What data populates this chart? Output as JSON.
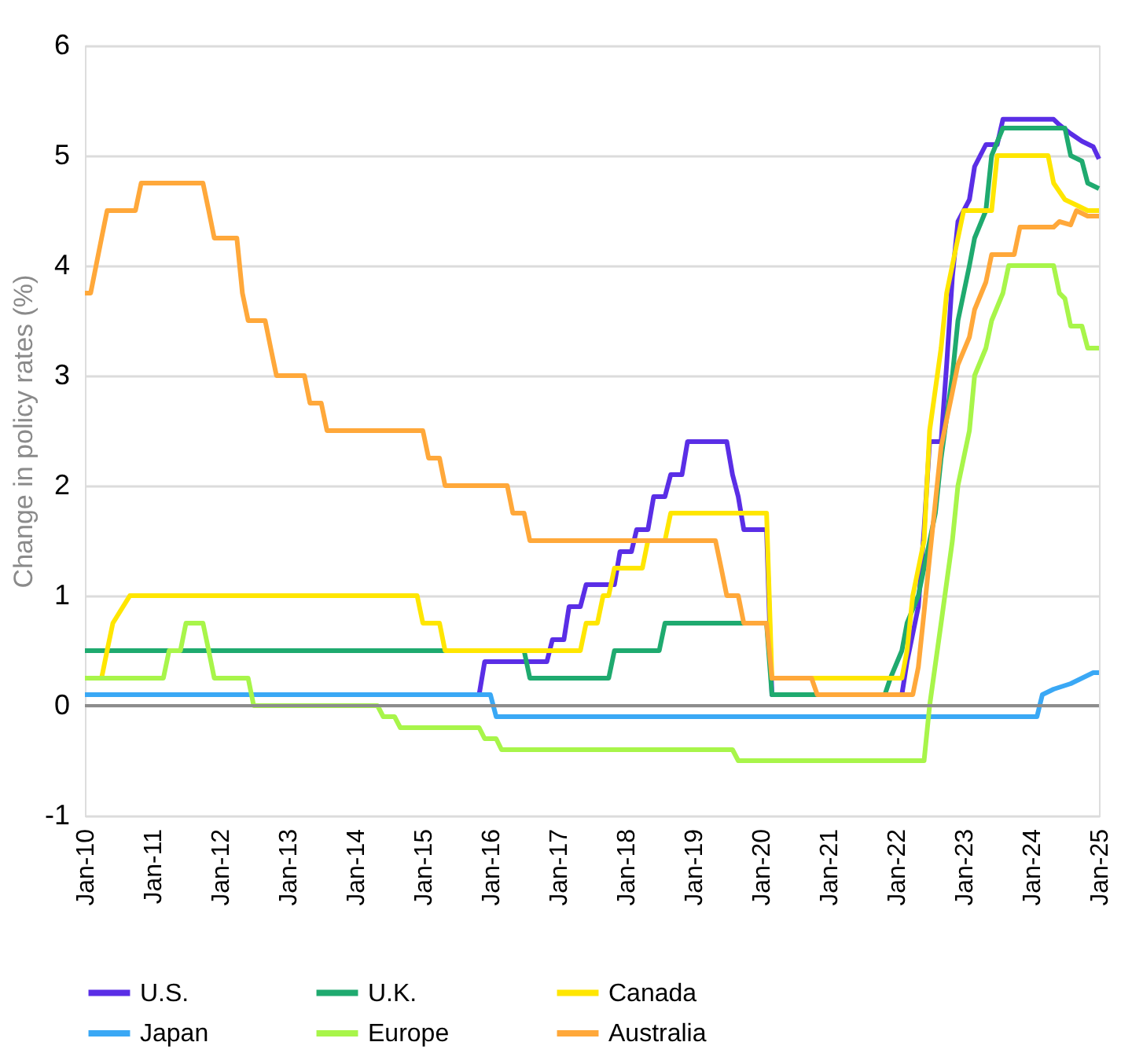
{
  "chart_data": {
    "type": "line",
    "ylabel": "Change in policy rates (%)",
    "xlim": [
      "2010-01",
      "2025-01"
    ],
    "xticks": [
      {
        "value": "2010-01",
        "label": "Jan-10"
      },
      {
        "value": "2011-01",
        "label": "Jan-11"
      },
      {
        "value": "2012-01",
        "label": "Jan-12"
      },
      {
        "value": "2013-01",
        "label": "Jan-13"
      },
      {
        "value": "2014-01",
        "label": "Jan-14"
      },
      {
        "value": "2015-01",
        "label": "Jan-15"
      },
      {
        "value": "2016-01",
        "label": "Jan-16"
      },
      {
        "value": "2017-01",
        "label": "Jan-17"
      },
      {
        "value": "2018-01",
        "label": "Jan-18"
      },
      {
        "value": "2019-01",
        "label": "Jan-19"
      },
      {
        "value": "2020-01",
        "label": "Jan-20"
      },
      {
        "value": "2021-01",
        "label": "Jan-21"
      },
      {
        "value": "2022-01",
        "label": "Jan-22"
      },
      {
        "value": "2023-01",
        "label": "Jan-23"
      },
      {
        "value": "2024-01",
        "label": "Jan-24"
      },
      {
        "value": "2025-01",
        "label": "Jan-25"
      }
    ],
    "ylim": [
      -1,
      6
    ],
    "yticks": [
      -1,
      0,
      1,
      2,
      3,
      4,
      5,
      6
    ],
    "grid": "y",
    "legend": "bottom",
    "line_style": "solid",
    "marker": "none",
    "ref_lines": [
      {
        "axis": "y",
        "value": 0,
        "color": "#8c8c8c"
      }
    ],
    "series": [
      {
        "name": "U.S.",
        "color": "#5a2ee6",
        "x": [
          "2015-11",
          "2015-12",
          "2016-11",
          "2016-12",
          "2017-02",
          "2017-03",
          "2017-05",
          "2017-06",
          "2017-11",
          "2017-12",
          "2018-02",
          "2018-03",
          "2018-05",
          "2018-06",
          "2018-08",
          "2018-09",
          "2018-11",
          "2018-12",
          "2019-07",
          "2019-08",
          "2019-09",
          "2019-10",
          "2020-02",
          "2020-03",
          "2022-02",
          "2022-03",
          "2022-05",
          "2022-06",
          "2022-07",
          "2022-09",
          "2022-10",
          "2022-11",
          "2022-12",
          "2023-02",
          "2023-03",
          "2023-05",
          "2023-07",
          "2023-08",
          "2024-05",
          "2024-06",
          "2024-08",
          "2024-10",
          "2024-12",
          "2025-01"
        ],
        "values": [
          0.1,
          0.4,
          0.4,
          0.6,
          0.6,
          0.9,
          0.9,
          1.1,
          1.1,
          1.4,
          1.4,
          1.6,
          1.6,
          1.9,
          1.9,
          2.1,
          2.1,
          2.4,
          2.4,
          2.1,
          1.9,
          1.6,
          1.6,
          0.1,
          0.1,
          0.4,
          0.9,
          1.6,
          2.4,
          2.4,
          3.1,
          3.9,
          4.4,
          4.6,
          4.9,
          5.1,
          5.1,
          5.33,
          5.33,
          5.28,
          5.2,
          5.13,
          5.08,
          4.97
        ]
      },
      {
        "name": "U.K.",
        "color": "#1faa6f",
        "x": [
          "2010-01",
          "2016-07",
          "2016-08",
          "2017-10",
          "2017-11",
          "2018-07",
          "2018-08",
          "2020-02",
          "2020-03",
          "2021-11",
          "2021-12",
          "2022-02",
          "2022-03",
          "2022-05",
          "2022-06",
          "2022-08",
          "2022-09",
          "2022-11",
          "2022-12",
          "2023-02",
          "2023-03",
          "2023-05",
          "2023-06",
          "2023-08",
          "2024-07",
          "2024-08",
          "2024-10",
          "2024-11",
          "2025-01"
        ],
        "values": [
          0.5,
          0.5,
          0.25,
          0.25,
          0.5,
          0.5,
          0.75,
          0.75,
          0.1,
          0.1,
          0.25,
          0.5,
          0.75,
          1.0,
          1.25,
          1.75,
          2.25,
          3.0,
          3.5,
          4.0,
          4.25,
          4.5,
          5.0,
          5.25,
          5.25,
          5.0,
          4.95,
          4.75,
          4.7
        ]
      },
      {
        "name": "Canada",
        "color": "#ffe600",
        "x": [
          "2010-01",
          "2010-04",
          "2010-05",
          "2010-06",
          "2010-09",
          "2014-12",
          "2015-01",
          "2015-04",
          "2015-05",
          "2017-05",
          "2017-06",
          "2017-08",
          "2017-09",
          "2017-10",
          "2017-11",
          "2018-04",
          "2018-05",
          "2018-08",
          "2018-09",
          "2020-02",
          "2020-03",
          "2022-02",
          "2022-03",
          "2022-04",
          "2022-06",
          "2022-07",
          "2022-09",
          "2022-10",
          "2022-12",
          "2023-01",
          "2023-06",
          "2023-07",
          "2024-04",
          "2024-05",
          "2024-07",
          "2024-09",
          "2024-11",
          "2025-01"
        ],
        "values": [
          0.25,
          0.25,
          0.5,
          0.75,
          1.0,
          1.0,
          0.75,
          0.75,
          0.5,
          0.5,
          0.75,
          0.75,
          1.0,
          1.0,
          1.25,
          1.25,
          1.5,
          1.5,
          1.75,
          1.75,
          0.25,
          0.25,
          0.5,
          1.0,
          1.5,
          2.5,
          3.25,
          3.75,
          4.25,
          4.5,
          4.5,
          5.0,
          5.0,
          4.75,
          4.6,
          4.55,
          4.5,
          4.5
        ]
      },
      {
        "name": "Japan",
        "color": "#3aa8f5",
        "x": [
          "2010-01",
          "2016-01",
          "2016-02",
          "2024-02",
          "2024-03",
          "2024-05",
          "2024-08",
          "2024-10",
          "2024-12",
          "2025-01"
        ],
        "values": [
          0.1,
          0.1,
          -0.1,
          -0.1,
          0.1,
          0.15,
          0.2,
          0.25,
          0.3,
          0.3
        ]
      },
      {
        "name": "Europe",
        "color": "#a8f54a",
        "x": [
          "2010-01",
          "2011-03",
          "2011-04",
          "2011-06",
          "2011-07",
          "2011-10",
          "2011-11",
          "2011-12",
          "2012-06",
          "2012-07",
          "2014-05",
          "2014-06",
          "2014-08",
          "2014-09",
          "2015-11",
          "2015-12",
          "2016-02",
          "2016-03",
          "2019-08",
          "2019-09",
          "2022-06",
          "2022-07",
          "2022-09",
          "2022-11",
          "2022-12",
          "2023-02",
          "2023-03",
          "2023-05",
          "2023-06",
          "2023-08",
          "2023-09",
          "2024-05",
          "2024-06",
          "2024-07",
          "2024-08",
          "2024-10",
          "2024-11",
          "2025-01"
        ],
        "values": [
          0.25,
          0.25,
          0.5,
          0.5,
          0.75,
          0.75,
          0.5,
          0.25,
          0.25,
          0.0,
          0.0,
          -0.1,
          -0.1,
          -0.2,
          -0.2,
          -0.3,
          -0.3,
          -0.4,
          -0.4,
          -0.5,
          -0.5,
          0.0,
          0.75,
          1.5,
          2.0,
          2.5,
          3.0,
          3.25,
          3.5,
          3.75,
          4.0,
          4.0,
          3.75,
          3.7,
          3.45,
          3.45,
          3.25,
          3.25
        ]
      },
      {
        "name": "Australia",
        "color": "#ffa83a",
        "x": [
          "2010-01",
          "2010-02",
          "2010-04",
          "2010-05",
          "2010-10",
          "2010-11",
          "2011-10",
          "2011-11",
          "2011-12",
          "2012-04",
          "2012-05",
          "2012-06",
          "2012-09",
          "2012-10",
          "2012-11",
          "2013-04",
          "2013-05",
          "2013-07",
          "2013-08",
          "2015-01",
          "2015-02",
          "2015-04",
          "2015-05",
          "2016-04",
          "2016-05",
          "2016-07",
          "2016-08",
          "2019-05",
          "2019-06",
          "2019-07",
          "2019-09",
          "2019-10",
          "2020-02",
          "2020-03",
          "2020-10",
          "2020-11",
          "2022-04",
          "2022-05",
          "2022-06",
          "2022-07",
          "2022-08",
          "2022-09",
          "2022-10",
          "2022-11",
          "2022-12",
          "2023-02",
          "2023-03",
          "2023-05",
          "2023-06",
          "2023-10",
          "2023-11",
          "2024-05",
          "2024-06",
          "2024-08",
          "2024-09",
          "2024-11",
          "2025-01"
        ],
        "values": [
          3.75,
          3.75,
          4.25,
          4.5,
          4.5,
          4.75,
          4.75,
          4.5,
          4.25,
          4.25,
          3.75,
          3.5,
          3.5,
          3.25,
          3.0,
          3.0,
          2.75,
          2.75,
          2.5,
          2.5,
          2.25,
          2.25,
          2.0,
          2.0,
          1.75,
          1.75,
          1.5,
          1.5,
          1.25,
          1.0,
          1.0,
          0.75,
          0.75,
          0.25,
          0.25,
          0.1,
          0.1,
          0.35,
          0.85,
          1.35,
          1.85,
          2.35,
          2.6,
          2.85,
          3.1,
          3.35,
          3.6,
          3.85,
          4.1,
          4.1,
          4.35,
          4.35,
          4.4,
          4.37,
          4.5,
          4.45,
          4.45
        ]
      }
    ]
  }
}
